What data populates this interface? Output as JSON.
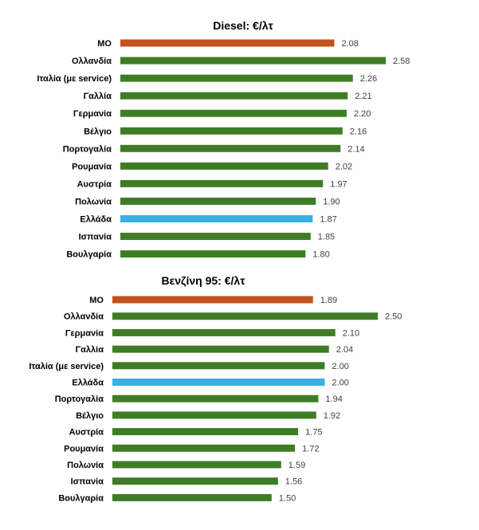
{
  "colors": {
    "average": "#c0521f",
    "greece": "#38b0e0",
    "default": "#3e7d25"
  },
  "chart_data": [
    {
      "type": "bar",
      "orientation": "horizontal",
      "title": "Diesel: €/λτ",
      "categories": [
        "ΜΟ",
        "Ολλανδία",
        "Ιταλία (με service)",
        "Γαλλία",
        "Γερμανία",
        "Βέλγιο",
        "Πορτογαλία",
        "Ρουμανία",
        "Αυστρία",
        "Πολωνία",
        "Ελλάδα",
        "Ισπανία",
        "Βουλγαρία"
      ],
      "values": [
        2.08,
        2.58,
        2.26,
        2.21,
        2.2,
        2.16,
        2.14,
        2.02,
        1.97,
        1.9,
        1.87,
        1.85,
        1.8
      ],
      "value_labels": [
        "2.08",
        "2.58",
        "2.26",
        "2.21",
        "2.20",
        "2.16",
        "2.14",
        "2.02",
        "1.97",
        "1.90",
        "1.87",
        "1.85",
        "1.80"
      ],
      "xlim": [
        0,
        2.58
      ],
      "grid": false
    },
    {
      "type": "bar",
      "orientation": "horizontal",
      "title": "Βενζίνη 95: €/λτ",
      "categories": [
        "ΜΟ",
        "Ολλανδία",
        "Γερμανία",
        "Γαλλία",
        "Ιταλία (με service)",
        "Ελλάδα",
        "Πορτογαλία",
        "Βέλγιο",
        "Αυστρία",
        "Ρουμανία",
        "Πολωνία",
        "Ισπανία",
        "Βουλγαρία"
      ],
      "values": [
        1.89,
        2.5,
        2.1,
        2.04,
        2.0,
        2.0,
        1.94,
        1.92,
        1.75,
        1.72,
        1.59,
        1.56,
        1.5
      ],
      "value_labels": [
        "1.89",
        "2.50",
        "2.10",
        "2.04",
        "2.00",
        "2.00",
        "1.94",
        "1.92",
        "1.75",
        "1.72",
        "1.59",
        "1.56",
        "1.50"
      ],
      "xlim": [
        0,
        2.5
      ],
      "grid": false
    }
  ]
}
